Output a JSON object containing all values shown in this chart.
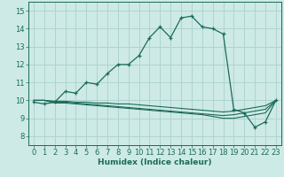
{
  "xlabel": "Humidex (Indice chaleur)",
  "background_color": "#ceeae6",
  "grid_color": "#add4d0",
  "line_color": "#1a6b5a",
  "xlim": [
    -0.5,
    23.5
  ],
  "ylim": [
    7.5,
    15.5
  ],
  "yticks": [
    8,
    9,
    10,
    11,
    12,
    13,
    14,
    15
  ],
  "xticks": [
    0,
    1,
    2,
    3,
    4,
    5,
    6,
    7,
    8,
    9,
    10,
    11,
    12,
    13,
    14,
    15,
    16,
    17,
    18,
    19,
    20,
    21,
    22,
    23
  ],
  "main_series": [
    9.9,
    9.8,
    9.9,
    10.5,
    10.4,
    11.0,
    10.9,
    11.5,
    12.0,
    12.0,
    12.5,
    13.5,
    14.1,
    13.5,
    14.6,
    14.7,
    14.1,
    14.0,
    13.7,
    9.5,
    9.3,
    8.5,
    8.8,
    10.0
  ],
  "flat_series1": [
    10.0,
    10.0,
    9.95,
    9.95,
    9.9,
    9.9,
    9.85,
    9.85,
    9.8,
    9.8,
    9.75,
    9.7,
    9.65,
    9.6,
    9.55,
    9.5,
    9.45,
    9.4,
    9.35,
    9.4,
    9.5,
    9.6,
    9.7,
    10.0
  ],
  "flat_series2": [
    10.0,
    10.0,
    9.9,
    9.9,
    9.85,
    9.8,
    9.75,
    9.7,
    9.65,
    9.6,
    9.55,
    9.5,
    9.45,
    9.4,
    9.35,
    9.3,
    9.25,
    9.2,
    9.15,
    9.2,
    9.3,
    9.4,
    9.5,
    10.0
  ],
  "flat_series3": [
    10.0,
    10.0,
    9.85,
    9.85,
    9.8,
    9.75,
    9.7,
    9.65,
    9.6,
    9.55,
    9.5,
    9.45,
    9.4,
    9.35,
    9.3,
    9.25,
    9.2,
    9.1,
    9.0,
    9.0,
    9.1,
    9.2,
    9.3,
    10.0
  ],
  "xlabel_fontsize": 6.5,
  "tick_fontsize": 6.0
}
